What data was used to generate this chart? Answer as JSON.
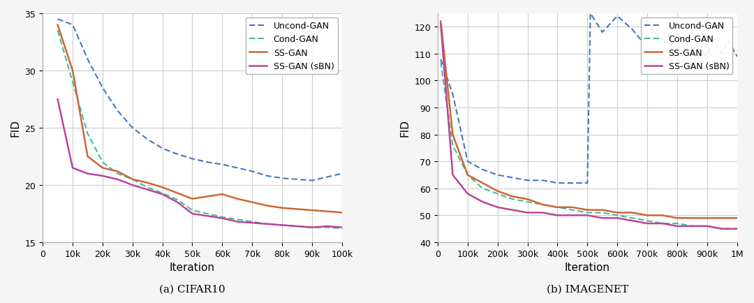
{
  "fig_bg": "#f5f5f5",
  "axes_bg": "#ffffff",
  "grid_color": "#cccccc",
  "cifar10": {
    "title": "(a) CIFAR10",
    "xlabel": "Iteration",
    "ylabel": "FID",
    "xlim": [
      0,
      100000
    ],
    "ylim": [
      15,
      35
    ],
    "yticks": [
      15,
      20,
      25,
      30,
      35
    ],
    "xtick_vals": [
      0,
      10000,
      20000,
      30000,
      40000,
      50000,
      60000,
      70000,
      80000,
      90000,
      100000
    ],
    "xtick_labels": [
      "0",
      "10k",
      "20k",
      "30k",
      "40k",
      "50k",
      "60k",
      "70k",
      "80k",
      "90k",
      "100k"
    ],
    "series": [
      {
        "x": [
          5000,
          10000,
          15000,
          20000,
          25000,
          30000,
          35000,
          40000,
          45000,
          50000,
          55000,
          60000,
          65000,
          70000,
          75000,
          80000,
          85000,
          90000,
          95000,
          100000
        ],
        "y": [
          34.5,
          34.0,
          31.0,
          28.5,
          26.5,
          25.0,
          24.0,
          23.2,
          22.7,
          22.3,
          22.0,
          21.8,
          21.5,
          21.2,
          20.8,
          20.6,
          20.5,
          20.4,
          20.7,
          21.0
        ],
        "color": "#4477BB",
        "dashed": true,
        "label": "Uncond-GAN",
        "linewidth": 1.5
      },
      {
        "x": [
          5000,
          10000,
          15000,
          20000,
          25000,
          30000,
          35000,
          40000,
          45000,
          50000,
          55000,
          60000,
          65000,
          70000,
          75000,
          80000,
          85000,
          90000,
          95000,
          100000
        ],
        "y": [
          33.5,
          29.0,
          24.5,
          22.0,
          21.0,
          20.5,
          19.8,
          19.3,
          18.7,
          17.8,
          17.5,
          17.2,
          17.0,
          16.8,
          16.6,
          16.5,
          16.4,
          16.3,
          16.3,
          16.2
        ],
        "color": "#44BB99",
        "dashed": true,
        "label": "Cond-GAN",
        "linewidth": 1.5
      },
      {
        "x": [
          5000,
          10000,
          15000,
          20000,
          25000,
          30000,
          35000,
          40000,
          45000,
          50000,
          55000,
          60000,
          65000,
          70000,
          75000,
          80000,
          85000,
          90000,
          95000,
          100000
        ],
        "y": [
          34.0,
          30.0,
          22.5,
          21.5,
          21.2,
          20.5,
          20.2,
          19.8,
          19.3,
          18.8,
          19.0,
          19.2,
          18.8,
          18.5,
          18.2,
          18.0,
          17.9,
          17.8,
          17.7,
          17.6
        ],
        "color": "#CC6633",
        "dashed": false,
        "label": "SS-GAN",
        "linewidth": 1.8
      },
      {
        "x": [
          5000,
          10000,
          15000,
          20000,
          25000,
          30000,
          35000,
          40000,
          45000,
          50000,
          55000,
          60000,
          65000,
          70000,
          75000,
          80000,
          85000,
          90000,
          95000,
          100000
        ],
        "y": [
          27.5,
          21.5,
          21.0,
          20.8,
          20.5,
          20.0,
          19.6,
          19.2,
          18.5,
          17.5,
          17.3,
          17.1,
          16.8,
          16.7,
          16.6,
          16.5,
          16.4,
          16.3,
          16.4,
          16.3
        ],
        "color": "#BB4499",
        "dashed": false,
        "label": "SS-GAN (sBN)",
        "linewidth": 1.8
      }
    ]
  },
  "imagenet": {
    "title": "(b) IMAGENET",
    "xlabel": "Iteration",
    "ylabel": "FID",
    "xlim": [
      0,
      1000000
    ],
    "ylim": [
      40,
      125
    ],
    "yticks": [
      40,
      50,
      60,
      70,
      80,
      90,
      100,
      110,
      120
    ],
    "xtick_vals": [
      0,
      100000,
      200000,
      300000,
      400000,
      500000,
      600000,
      700000,
      800000,
      900000,
      1000000
    ],
    "xtick_labels": [
      "0",
      "100k",
      "200k",
      "300k",
      "400k",
      "500k",
      "600k",
      "700k",
      "800k",
      "900k",
      "1M"
    ],
    "series": [
      {
        "x": [
          10000,
          50000,
          100000,
          150000,
          200000,
          250000,
          300000,
          350000,
          400000,
          450000,
          500000,
          510000,
          550000,
          600000,
          620000,
          650000,
          680000,
          700000,
          720000,
          750000,
          780000,
          800000,
          820000,
          850000,
          870000,
          900000,
          920000,
          950000,
          970000,
          1000000
        ],
        "y": [
          108,
          95,
          70,
          67,
          65,
          64,
          63,
          63,
          62,
          62,
          62,
          125,
          118,
          124,
          122,
          119,
          115,
          122,
          118,
          115,
          113,
          117,
          112,
          110,
          112,
          109,
          115,
          110,
          115,
          109
        ],
        "color": "#4477BB",
        "dashed": true,
        "label": "Uncond-GAN",
        "linewidth": 1.5
      },
      {
        "x": [
          10000,
          50000,
          100000,
          150000,
          200000,
          250000,
          300000,
          350000,
          400000,
          450000,
          500000,
          550000,
          600000,
          650000,
          700000,
          750000,
          800000,
          850000,
          900000,
          950000,
          1000000
        ],
        "y": [
          107,
          76,
          65,
          60,
          58,
          56,
          55,
          54,
          53,
          52,
          51,
          51,
          50,
          49,
          48,
          47,
          47,
          46,
          46,
          45,
          45
        ],
        "color": "#44BB99",
        "dashed": true,
        "label": "Cond-GAN",
        "linewidth": 1.5
      },
      {
        "x": [
          10000,
          50000,
          100000,
          150000,
          200000,
          250000,
          300000,
          350000,
          400000,
          450000,
          500000,
          550000,
          600000,
          650000,
          700000,
          750000,
          800000,
          850000,
          900000,
          950000,
          1000000
        ],
        "y": [
          122,
          80,
          65,
          62,
          59,
          57,
          56,
          54,
          53,
          53,
          52,
          52,
          51,
          51,
          50,
          50,
          49,
          49,
          49,
          49,
          49
        ],
        "color": "#CC6633",
        "dashed": false,
        "label": "SS-GAN",
        "linewidth": 1.8
      },
      {
        "x": [
          10000,
          50000,
          100000,
          150000,
          200000,
          250000,
          300000,
          350000,
          400000,
          450000,
          500000,
          550000,
          600000,
          650000,
          700000,
          750000,
          800000,
          850000,
          900000,
          950000,
          1000000
        ],
        "y": [
          121,
          65,
          58,
          55,
          53,
          52,
          51,
          51,
          50,
          50,
          50,
          49,
          49,
          48,
          47,
          47,
          46,
          46,
          46,
          45,
          45
        ],
        "color": "#BB4499",
        "dashed": false,
        "label": "SS-GAN (sBN)",
        "linewidth": 1.8
      }
    ]
  },
  "legend_fontsize": 9,
  "axis_label_fontsize": 11,
  "tick_fontsize": 9,
  "title_fontsize": 11
}
